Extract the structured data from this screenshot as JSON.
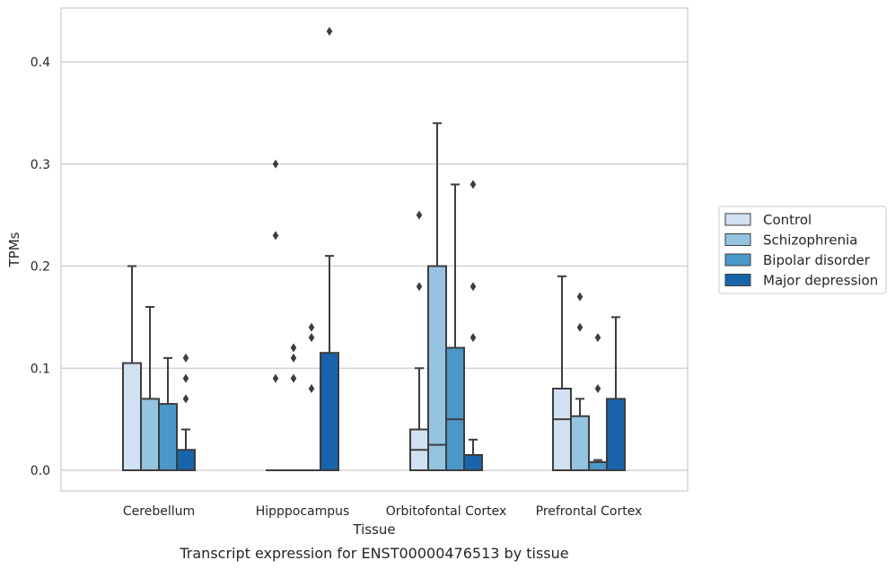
{
  "chart_data": {
    "type": "box",
    "xlabel": "Tissue",
    "ylabel": "TPMs",
    "caption": "Transcript expression for ENST00000476513 by tissue",
    "ylim": [
      -0.021,
      0.452
    ],
    "yticks": [
      0.0,
      0.1,
      0.2,
      0.3,
      0.4
    ],
    "ytick_labels": [
      "0.0",
      "0.1",
      "0.2",
      "0.3",
      "0.4"
    ],
    "grid": "horizontal",
    "legend_position": "right",
    "categories": [
      "Cerebellum",
      "Hipppocampus",
      "Orbitofontal Cortex",
      "Prefrontal Cortex"
    ],
    "series": [
      {
        "name": "Control",
        "color": "#d0e1f2",
        "boxes": [
          {
            "min": 0.0,
            "q1": 0.0,
            "median": 0.0,
            "q3": 0.105,
            "max": 0.2,
            "outliers": []
          },
          {
            "min": 0.0,
            "q1": 0.0,
            "median": 0.0,
            "q3": 0.0,
            "max": 0.0,
            "outliers": [
              0.09,
              0.23,
              0.3
            ]
          },
          {
            "min": 0.0,
            "q1": 0.0,
            "median": 0.02,
            "q3": 0.04,
            "max": 0.1,
            "outliers": [
              0.18,
              0.25
            ]
          },
          {
            "min": 0.0,
            "q1": 0.0,
            "median": 0.05,
            "q3": 0.08,
            "max": 0.19,
            "outliers": []
          }
        ]
      },
      {
        "name": "Schizophrenia",
        "color": "#94c4df",
        "boxes": [
          {
            "min": 0.0,
            "q1": 0.0,
            "median": 0.0,
            "q3": 0.07,
            "max": 0.16,
            "outliers": []
          },
          {
            "min": 0.0,
            "q1": 0.0,
            "median": 0.0,
            "q3": 0.0,
            "max": 0.0,
            "outliers": [
              0.09,
              0.11,
              0.12
            ]
          },
          {
            "min": 0.0,
            "q1": 0.0,
            "median": 0.025,
            "q3": 0.2,
            "max": 0.34,
            "outliers": []
          },
          {
            "min": 0.0,
            "q1": 0.0,
            "median": 0.0,
            "q3": 0.053,
            "max": 0.07,
            "outliers": [
              0.14,
              0.17
            ]
          }
        ]
      },
      {
        "name": "Bipolar disorder",
        "color": "#4a98c9",
        "boxes": [
          {
            "min": 0.0,
            "q1": 0.0,
            "median": 0.0,
            "q3": 0.065,
            "max": 0.11,
            "outliers": []
          },
          {
            "min": 0.0,
            "q1": 0.0,
            "median": 0.0,
            "q3": 0.0,
            "max": 0.0,
            "outliers": [
              0.08,
              0.13,
              0.14
            ]
          },
          {
            "min": 0.0,
            "q1": 0.0,
            "median": 0.05,
            "q3": 0.12,
            "max": 0.28,
            "outliers": []
          },
          {
            "min": 0.0,
            "q1": 0.0,
            "median": 0.008,
            "q3": 0.008,
            "max": 0.01,
            "outliers": [
              0.08,
              0.13
            ]
          }
        ]
      },
      {
        "name": "Major depression",
        "color": "#1764ab",
        "boxes": [
          {
            "min": 0.0,
            "q1": 0.0,
            "median": 0.0,
            "q3": 0.02,
            "max": 0.04,
            "outliers": [
              0.07,
              0.09,
              0.11
            ]
          },
          {
            "min": 0.0,
            "q1": 0.0,
            "median": 0.0,
            "q3": 0.115,
            "max": 0.21,
            "outliers": [
              0.43
            ]
          },
          {
            "min": 0.0,
            "q1": 0.0,
            "median": 0.0,
            "q3": 0.015,
            "max": 0.03,
            "outliers": [
              0.13,
              0.18,
              0.28
            ]
          },
          {
            "min": 0.0,
            "q1": 0.0,
            "median": 0.0,
            "q3": 0.07,
            "max": 0.15,
            "outliers": []
          }
        ]
      }
    ]
  }
}
